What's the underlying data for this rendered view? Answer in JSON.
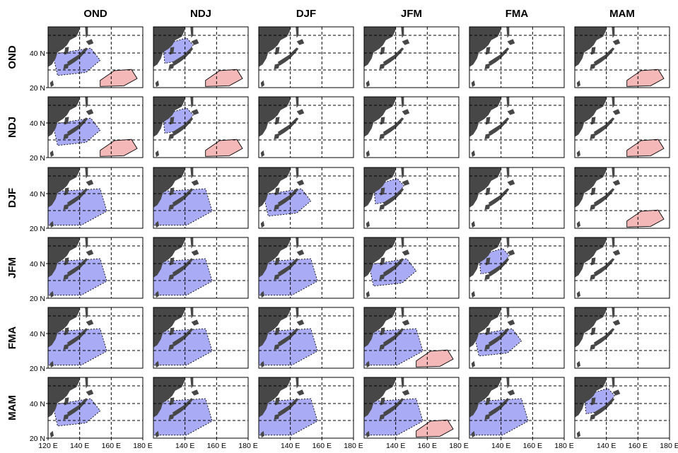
{
  "columns": [
    "OND",
    "NDJ",
    "DJF",
    "JFM",
    "FMA",
    "MAM"
  ],
  "rows": [
    "OND",
    "NDJ",
    "DJF",
    "JFM",
    "FMA",
    "MAM"
  ],
  "y_ticks": [
    "20 N",
    "40 N"
  ],
  "x_ticks_first": [
    "120 E",
    "140 E",
    "160 E",
    "180 E"
  ],
  "x_ticks_other": [
    "140 E",
    "160 E",
    "180 E"
  ],
  "map": {
    "lon_range": [
      120,
      180
    ],
    "lat_range": [
      20,
      55
    ],
    "gridlines": "dashed",
    "land_color": "#474747",
    "negative_shade_color": "#8c8ff2",
    "positive_shade_color": "#f4b8b8"
  },
  "panels": [
    [
      {
        "neg": 2,
        "pos": 1
      },
      {
        "neg": 1,
        "pos": 1
      },
      {
        "neg": 0,
        "pos": 0
      },
      {
        "neg": 0,
        "pos": 0
      },
      {
        "neg": 0,
        "pos": 0
      },
      {
        "neg": 0,
        "pos": 1
      }
    ],
    [
      {
        "neg": 2,
        "pos": 1
      },
      {
        "neg": 1,
        "pos": 1
      },
      {
        "neg": 0,
        "pos": 0
      },
      {
        "neg": 0,
        "pos": 0
      },
      {
        "neg": 0,
        "pos": 0
      },
      {
        "neg": 0,
        "pos": 1
      }
    ],
    [
      {
        "neg": 3,
        "pos": 0
      },
      {
        "neg": 3,
        "pos": 0
      },
      {
        "neg": 2,
        "pos": 0
      },
      {
        "neg": 1,
        "pos": 0
      },
      {
        "neg": 0,
        "pos": 0
      },
      {
        "neg": 0,
        "pos": 1
      }
    ],
    [
      {
        "neg": 3,
        "pos": 0
      },
      {
        "neg": 3,
        "pos": 0
      },
      {
        "neg": 3,
        "pos": 0
      },
      {
        "neg": 2,
        "pos": 0
      },
      {
        "neg": 1,
        "pos": 0
      },
      {
        "neg": 0,
        "pos": 0
      }
    ],
    [
      {
        "neg": 3,
        "pos": 0
      },
      {
        "neg": 3,
        "pos": 0
      },
      {
        "neg": 3,
        "pos": 0
      },
      {
        "neg": 3,
        "pos": 1
      },
      {
        "neg": 2,
        "pos": 0
      },
      {
        "neg": 0,
        "pos": 0
      }
    ],
    [
      {
        "neg": 2,
        "pos": 0
      },
      {
        "neg": 3,
        "pos": 0
      },
      {
        "neg": 3,
        "pos": 0
      },
      {
        "neg": 3,
        "pos": 1
      },
      {
        "neg": 3,
        "pos": 0
      },
      {
        "neg": 1,
        "pos": 0
      }
    ]
  ]
}
